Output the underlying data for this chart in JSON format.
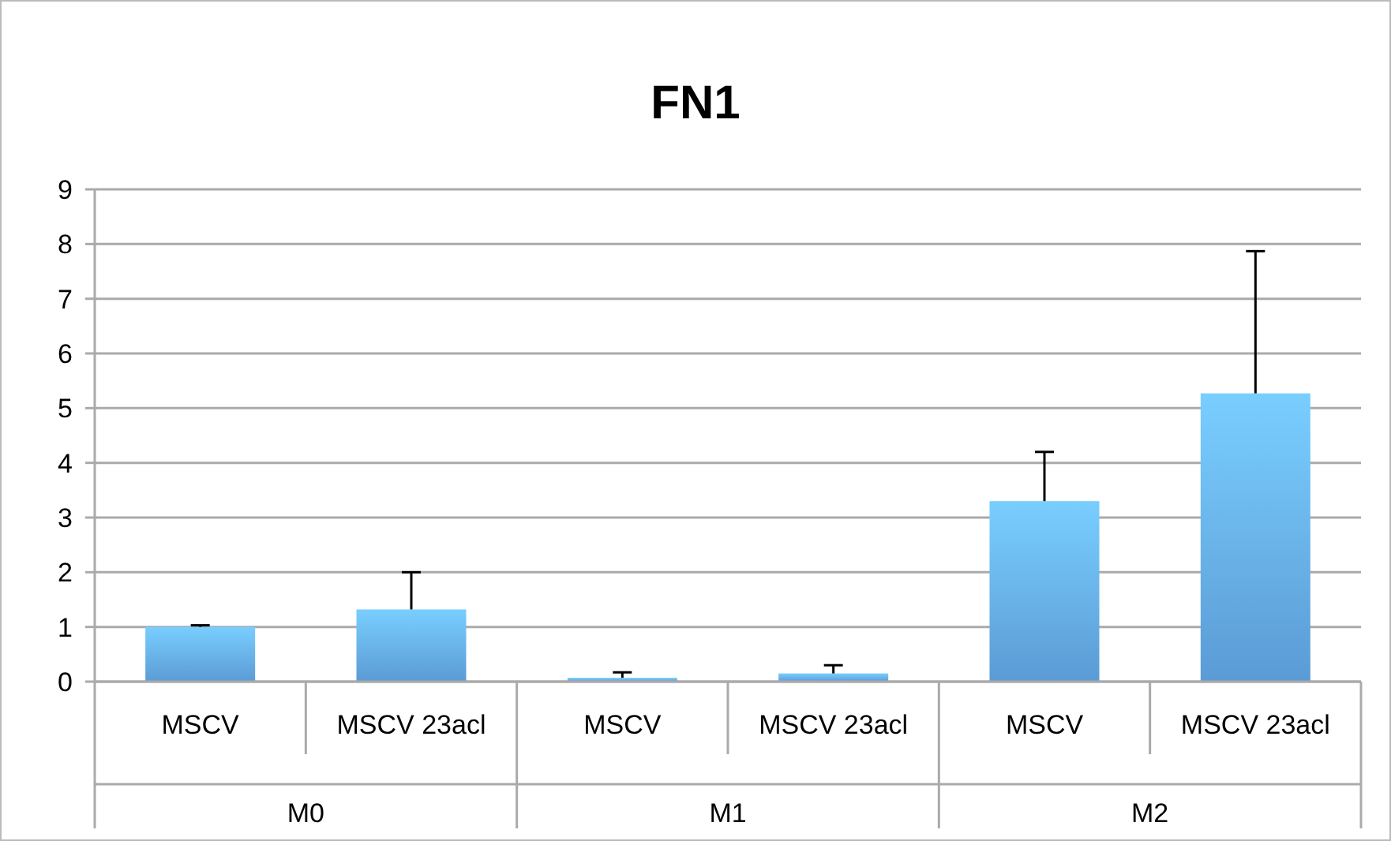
{
  "chart_data": {
    "type": "bar",
    "title": "FN1",
    "categories": [
      "MSCV",
      "MSCV 23acl",
      "MSCV",
      "MSCV 23acl",
      "MSCV",
      "MSCV 23acl"
    ],
    "values": [
      1.0,
      1.32,
      0.07,
      0.15,
      3.3,
      5.27
    ],
    "errors": [
      [
        1.0,
        1.03
      ],
      [
        1.32,
        2.0
      ],
      [
        0.07,
        0.17
      ],
      [
        0.15,
        0.3
      ],
      [
        3.3,
        4.2
      ],
      [
        5.27,
        7.87
      ]
    ],
    "color": "#5b9bd5",
    "ylim": [
      0,
      9
    ],
    "yticks": [
      0,
      1,
      2,
      3,
      4,
      5,
      6,
      7,
      8,
      9
    ],
    "grid": "y",
    "annotations": [
      "M0",
      "M1",
      "M2"
    ]
  }
}
